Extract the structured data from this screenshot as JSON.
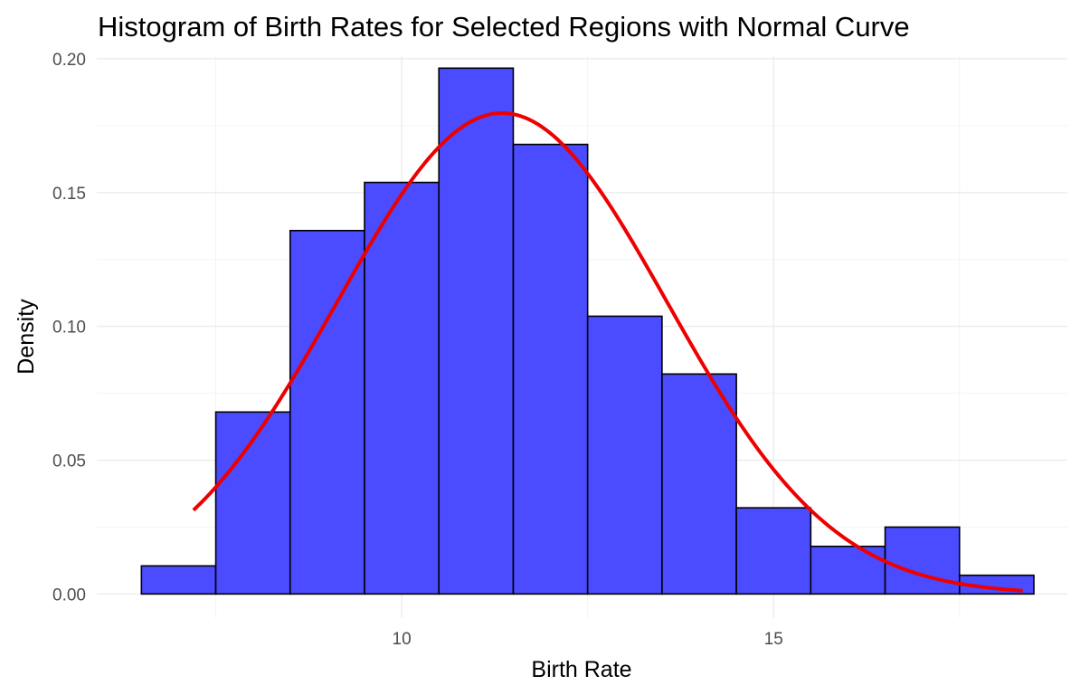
{
  "chart_data": {
    "type": "bar",
    "title": "Histogram of Birth Rates for Selected Regions with Normal Curve",
    "xlabel": "Birth Rate",
    "ylabel": "Density",
    "xlim": [
      5.9,
      18.95
    ],
    "ylim": [
      -0.009,
      0.201
    ],
    "x_ticks": [
      10,
      15
    ],
    "x_tick_labels": [
      "10",
      "15"
    ],
    "y_ticks": [
      0,
      0.05,
      0.1,
      0.15,
      0.2
    ],
    "y_tick_labels": [
      "0.00",
      "0.05",
      "0.10",
      "0.15",
      "0.20"
    ],
    "bin_width": 1,
    "bins": [
      {
        "x0": 6.5,
        "x1": 7.5,
        "density": 0.0105
      },
      {
        "x0": 7.5,
        "x1": 8.5,
        "density": 0.068
      },
      {
        "x0": 8.5,
        "x1": 9.5,
        "density": 0.1358
      },
      {
        "x0": 9.5,
        "x1": 10.5,
        "density": 0.1538
      },
      {
        "x0": 10.5,
        "x1": 11.5,
        "density": 0.1965
      },
      {
        "x0": 11.5,
        "x1": 12.5,
        "density": 0.168
      },
      {
        "x0": 12.5,
        "x1": 13.5,
        "density": 0.1038
      },
      {
        "x0": 13.5,
        "x1": 14.5,
        "density": 0.0822
      },
      {
        "x0": 14.5,
        "x1": 15.5,
        "density": 0.0322
      },
      {
        "x0": 15.5,
        "x1": 16.5,
        "density": 0.0178
      },
      {
        "x0": 16.5,
        "x1": 17.5,
        "density": 0.025
      },
      {
        "x0": 17.5,
        "x1": 18.5,
        "density": 0.007
      }
    ],
    "normal_curve": {
      "mean": 11.35,
      "sd": 2.22,
      "x_range": [
        7.2,
        18.35
      ]
    },
    "colors": {
      "bar_fill": "#4b4bff",
      "bar_outline": "#000000",
      "curve": "#ee0000",
      "grid_major": "#ebebeb",
      "grid_minor": "#f4f4f4",
      "tick_text": "#4d4d4d"
    },
    "grid": true,
    "legend": "none"
  }
}
